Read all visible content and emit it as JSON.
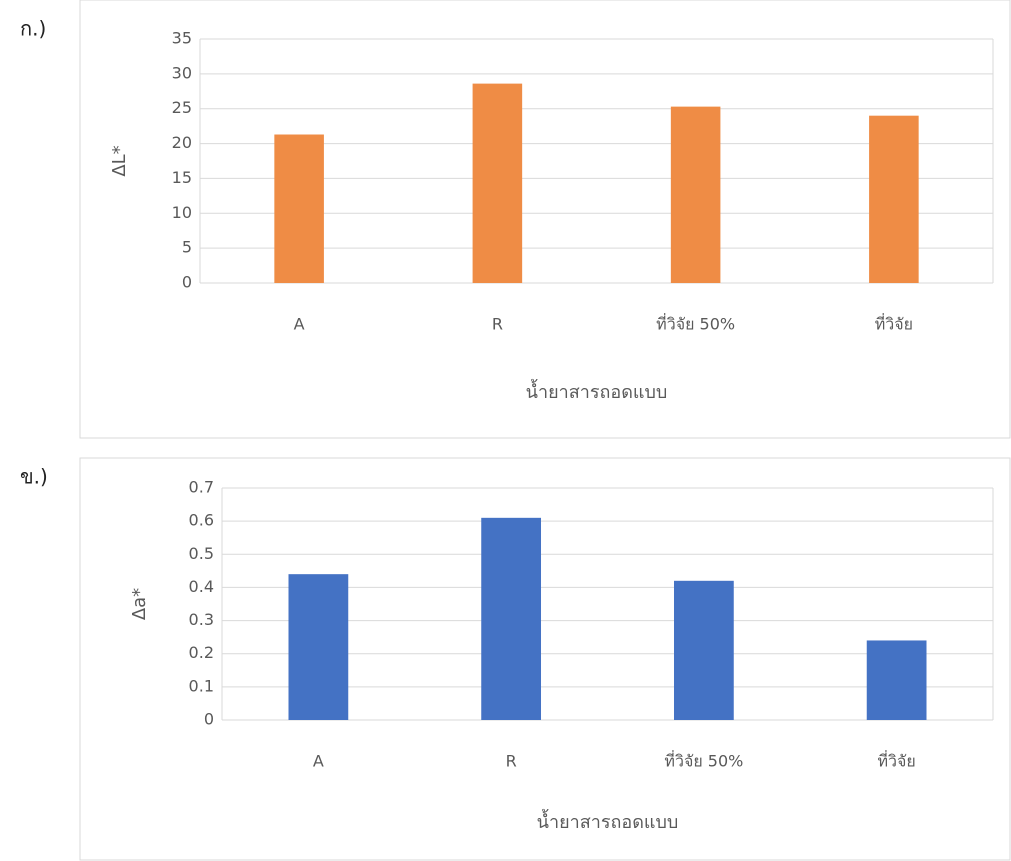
{
  "chart_data": [
    {
      "type": "bar",
      "panel_label": "ก.)",
      "y_label": "ΔL*",
      "x_label": "น้ำยาสารถอดแบบ",
      "categories": [
        "A",
        "R",
        "ที่วิจัย 50%",
        "ที่วิจัย"
      ],
      "values": [
        21.3,
        28.6,
        25.3,
        24.0
      ],
      "color": "#ef8c45",
      "ylim": [
        0,
        35
      ],
      "yticks": [
        0,
        5,
        10,
        15,
        20,
        25,
        30,
        35
      ],
      "grid": true
    },
    {
      "type": "bar",
      "panel_label": "ข.)",
      "y_label": "Δa*",
      "x_label": "น้ำยาสารถอดแบบ",
      "categories": [
        "A",
        "R",
        "ที่วิจัย 50%",
        "ที่วิจัย"
      ],
      "values": [
        0.44,
        0.61,
        0.42,
        0.24
      ],
      "color": "#4472c4",
      "ylim": [
        0,
        0.7
      ],
      "yticks": [
        0,
        0.1,
        0.2,
        0.3,
        0.4,
        0.5,
        0.6,
        0.7
      ],
      "grid": true
    }
  ]
}
